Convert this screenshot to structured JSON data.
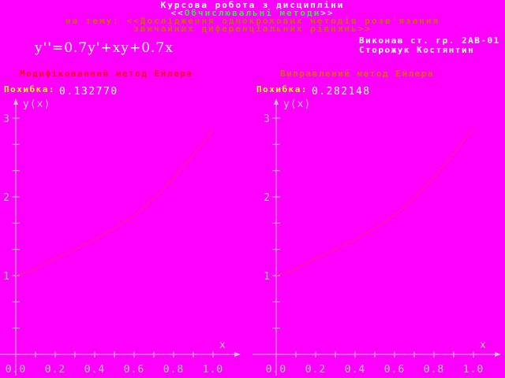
{
  "header": {
    "line1": "Курсова робота з дисципліни",
    "line2_open": "<<",
    "line2_text": "Обчислювальні методи",
    "line2_close": ">>",
    "line3": "на тему: <<Дослідження однокрокових методів розв'язання",
    "line4": "звичайних диференціальних рівнянь>>"
  },
  "equation": "y''=0.7y'+xy+0.7x",
  "credit": {
    "line1": "Виконав ст. гр. 2АВ-01",
    "line2": "Сторожук Костянтин"
  },
  "colors": {
    "background": "#ff00ff",
    "white_text": "#ffffff",
    "subject_text": "#3be13b",
    "subject_brackets": "#c9f3c9",
    "topic_text": "#c2690f",
    "method_title_left": "#ee1111",
    "method_title_right": "#cf6a00",
    "error_label": "#ffff00",
    "axis": "#c4c4c4",
    "curve": "#ff4a10"
  },
  "chart_data": [
    {
      "type": "line",
      "title": "Модифікованний метод Ейлера",
      "error_label": "Похибка:",
      "error_value": "0.132770",
      "xlabel": "x",
      "ylabel": "y(x)",
      "xlim": [
        0,
        1.1
      ],
      "ylim": [
        0,
        3.3
      ],
      "x_ticks_labeled": [
        0.0,
        0.2,
        0.4,
        0.6,
        0.8,
        1.0
      ],
      "y_ticks_labeled": [
        1,
        2,
        3
      ],
      "x": [
        0.0,
        0.1,
        0.2,
        0.3,
        0.4,
        0.5,
        0.6,
        0.7,
        0.8,
        0.9,
        1.0
      ],
      "y": [
        1.0,
        1.08,
        1.22,
        1.33,
        1.46,
        1.6,
        1.76,
        1.98,
        2.24,
        2.53,
        2.85
      ],
      "line_color": "#ff4a10",
      "legend": null,
      "grid": false
    },
    {
      "type": "line",
      "title": "Виправлений метод Ейлера",
      "error_label": "Похибка:",
      "error_value": "0.282148",
      "xlabel": "x",
      "ylabel": "y(x)",
      "xlim": [
        0,
        1.1
      ],
      "ylim": [
        0,
        3.3
      ],
      "x_ticks_labeled": [
        0.0,
        0.2,
        0.4,
        0.6,
        0.8,
        1.0
      ],
      "y_ticks_labeled": [
        1,
        2,
        3
      ],
      "x": [
        0.0,
        0.1,
        0.2,
        0.3,
        0.4,
        0.5,
        0.6,
        0.7,
        0.8,
        0.9,
        1.0
      ],
      "y": [
        1.0,
        1.08,
        1.22,
        1.33,
        1.46,
        1.6,
        1.77,
        1.99,
        2.25,
        2.55,
        2.87
      ],
      "line_color": "#ff4a10",
      "legend": null,
      "grid": false
    }
  ]
}
